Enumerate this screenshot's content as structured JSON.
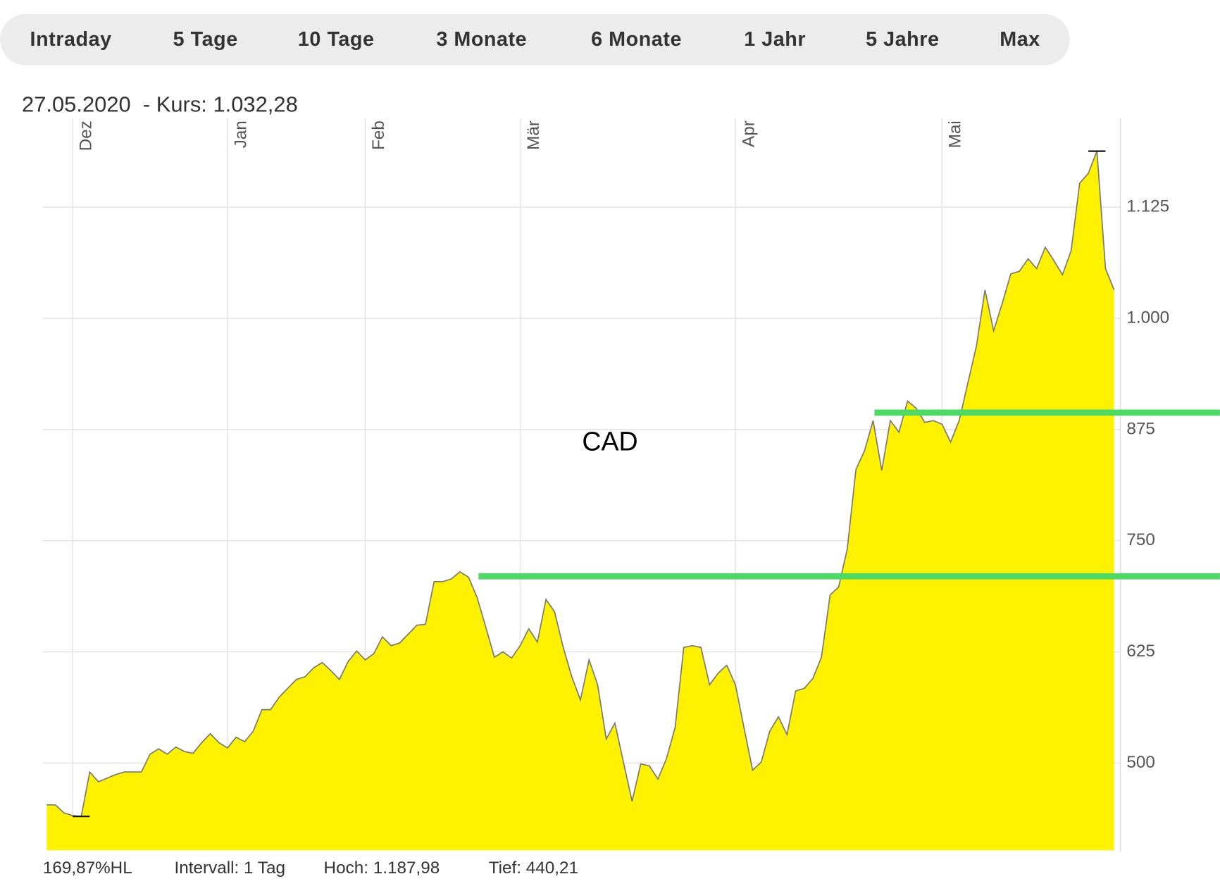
{
  "tabs": [
    "Intraday",
    "5 Tage",
    "10 Tage",
    "3 Monate",
    "6 Monate",
    "1 Jahr",
    "5 Jahre",
    "Max"
  ],
  "header": "27.05.2020  - Kurs: 1.032,28",
  "footer": [
    "169,87%HL",
    "Intervall: 1 Tag",
    "Hoch: 1.187,98",
    "Tief: 440,21"
  ],
  "chart_data": {
    "type": "area",
    "annotation": "CAD",
    "color": "#fff200",
    "line_color": "#777777",
    "categories": [
      null,
      null,
      null,
      "Dez",
      null,
      null,
      null,
      null,
      null,
      null,
      null,
      null,
      null,
      null,
      null,
      null,
      null,
      null,
      null,
      null,
      null,
      "Jan",
      null,
      null,
      null,
      null,
      null,
      null,
      null,
      null,
      null,
      null,
      null,
      null,
      null,
      null,
      null,
      "Feb",
      null,
      null,
      null,
      null,
      null,
      null,
      null,
      null,
      null,
      null,
      null,
      null,
      null,
      null,
      null,
      null,
      null,
      "Mär",
      null,
      null,
      null,
      null,
      null,
      null,
      null,
      null,
      null,
      null,
      null,
      null,
      null,
      null,
      null,
      null,
      null,
      null,
      null,
      null,
      null,
      null,
      null,
      null,
      "Apr",
      null,
      null,
      null,
      null,
      null,
      null,
      null,
      null,
      null,
      null,
      null,
      null,
      null,
      null,
      null,
      null,
      null,
      null,
      null,
      null,
      null,
      null,
      null,
      "Mai",
      null,
      null,
      null,
      null,
      null,
      null,
      null,
      null,
      null,
      null,
      null,
      null,
      null,
      null,
      null,
      null,
      null,
      null,
      null,
      null
    ],
    "values": [
      453,
      453,
      444,
      441,
      440,
      490,
      479,
      483,
      487,
      490,
      490,
      490,
      510,
      516,
      510,
      518,
      513,
      511,
      523,
      533,
      523,
      517,
      529,
      524,
      536,
      560,
      560,
      574,
      584,
      594,
      597,
      607,
      613,
      604,
      594,
      614,
      626,
      616,
      623,
      642,
      632,
      635,
      645,
      655,
      656,
      704,
      704,
      707,
      715,
      709,
      686,
      653,
      619,
      625,
      618,
      632,
      651,
      636,
      684,
      670,
      630,
      597,
      571,
      616,
      588,
      527,
      545,
      501,
      457,
      499,
      497,
      482,
      505,
      540,
      630,
      632,
      630,
      588,
      601,
      610,
      588,
      540,
      492,
      501,
      536,
      552,
      532,
      581,
      584,
      595,
      619,
      689,
      698,
      741,
      830,
      851,
      885,
      829,
      885,
      872,
      907,
      899,
      883,
      885,
      881,
      861,
      885,
      927,
      969,
      1032,
      986,
      1017,
      1050,
      1053,
      1067,
      1056,
      1080,
      1065,
      1049,
      1076,
      1152,
      1163,
      1188,
      1056,
      1032
    ],
    "ylim": [
      402,
      1225
    ],
    "yticks": [
      500,
      625,
      750,
      875,
      {
        "value": 1000,
        "label": "1.000"
      },
      {
        "value": 1125,
        "label": "1.125"
      }
    ],
    "grid": true,
    "hlines": [
      {
        "value": 710,
        "color": "#4cd964"
      },
      {
        "value": 894,
        "color": "#4cd964"
      }
    ]
  }
}
